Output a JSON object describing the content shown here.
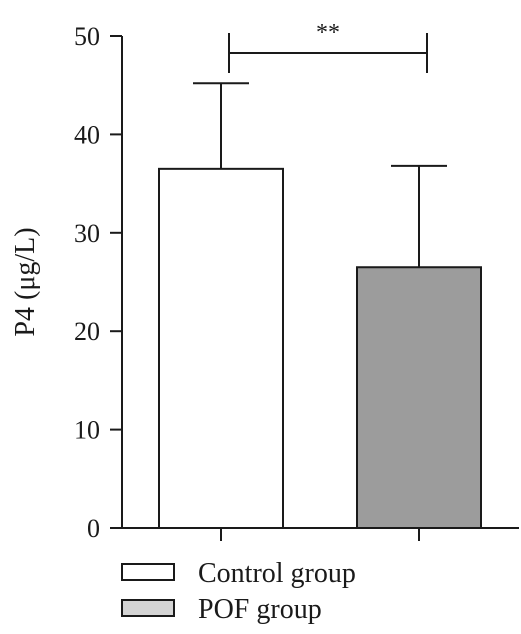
{
  "chart_data": {
    "type": "bar",
    "categories": [
      "Control group",
      "POF group"
    ],
    "values": [
      36.5,
      26.5
    ],
    "errors": [
      8.7,
      10.3
    ],
    "ylabel": "P4 (μg/L)",
    "ylim": [
      0,
      50
    ],
    "yticks": [
      "0",
      "10",
      "20",
      "30",
      "40",
      "50"
    ],
    "significance": "**",
    "legend": {
      "position": "bottom",
      "entries": [
        {
          "label": "Control group",
          "color": "#ffffff"
        },
        {
          "label": "POF group",
          "color": "#d4d4d4"
        }
      ]
    },
    "colors": {
      "bars": [
        "#ffffff",
        "#9c9c9c"
      ],
      "stroke": "#1a1a1a"
    },
    "grid": false
  }
}
